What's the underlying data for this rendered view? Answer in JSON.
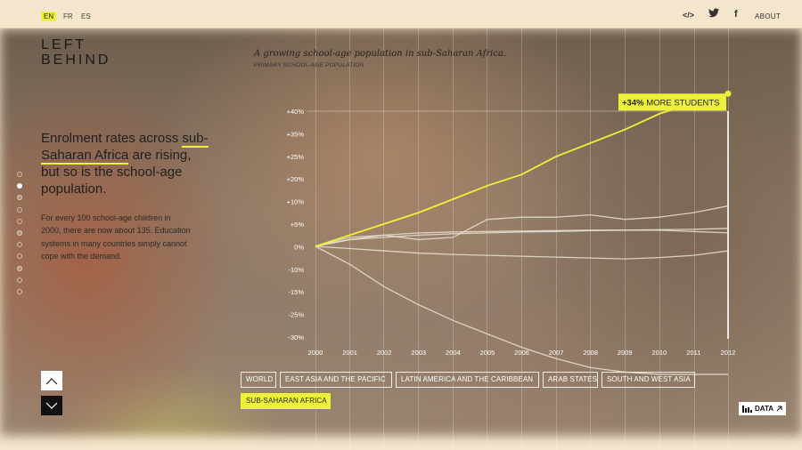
{
  "languages": [
    {
      "code": "EN",
      "active": true
    },
    {
      "code": "FR",
      "active": false
    },
    {
      "code": "ES",
      "active": false
    }
  ],
  "topnav": {
    "embed_icon": "</>",
    "twitter_icon": "twitter-bird",
    "facebook_icon": "f",
    "about": "ABOUT"
  },
  "logo": {
    "line1": "LEFT",
    "line2": "BEHIND"
  },
  "story": {
    "headline_pre": "Enrolment rates across ",
    "headline_highlight": "sub-Saharan Africa",
    "headline_post": " are rising, but so is the school-age population.",
    "body": "For every 100 school-age children in 2000, there are now about 135. Education systems in many countries simply cannot cope with the demand."
  },
  "progress_dots": 11,
  "active_dot": 1,
  "chart_data": {
    "type": "line",
    "title": "A growing school-age population in sub-Saharan Africa.",
    "subtitle": "PRIMARY SCHOOL-AGE POPULATION",
    "x": [
      2000,
      2001,
      2002,
      2003,
      2004,
      2005,
      2006,
      2007,
      2008,
      2009,
      2010,
      2011,
      2012
    ],
    "ylim": [
      -30,
      40
    ],
    "yticks": [
      "+40%",
      "+35%",
      "+25%",
      "+20%",
      "+10%",
      "+5%",
      "0%",
      "-10%",
      "-15%",
      "-25%",
      "-30%"
    ],
    "annotation": {
      "value": "+34%",
      "label": "MORE STUDENTS",
      "x": 2012,
      "y": 34
    },
    "series": [
      {
        "name": "SUB-SAHARAN AFRICA",
        "highlight": true,
        "values": [
          0,
          2.5,
          5,
          7.5,
          10.5,
          13.5,
          16,
          20,
          23,
          26,
          29.5,
          32,
          34
        ]
      },
      {
        "name": "ARAB STATES",
        "highlight": false,
        "values": [
          0,
          1.5,
          2.5,
          1.5,
          2,
          6,
          6.5,
          6.5,
          7,
          6,
          6.5,
          7.5,
          9
        ]
      },
      {
        "name": "WORLD",
        "highlight": false,
        "values": [
          0,
          1.5,
          2,
          2.5,
          2.8,
          3,
          3.2,
          3.3,
          3.5,
          3.6,
          3.7,
          3.8,
          4
        ]
      },
      {
        "name": "SOUTH AND WEST ASIA",
        "highlight": false,
        "values": [
          0,
          2,
          2.5,
          3,
          3.2,
          3.3,
          3.4,
          3.5,
          3.6,
          3.6,
          3.6,
          3.3,
          3
        ]
      },
      {
        "name": "LATIN AMERICA AND THE CARIBBEAN",
        "highlight": false,
        "values": [
          0,
          -0.5,
          -1,
          -1.5,
          -1.8,
          -2,
          -2.2,
          -2.4,
          -2.6,
          -2.8,
          -2.5,
          -2,
          -1
        ]
      },
      {
        "name": "EAST ASIA AND THE PACIFIC",
        "highlight": false,
        "values": [
          0,
          -4,
          -9,
          -13,
          -16.5,
          -19.5,
          -22.5,
          -25,
          -27,
          -28,
          -28.5,
          -28.5,
          -28.5
        ]
      }
    ]
  },
  "filters": [
    {
      "label": "WORLD",
      "active": false
    },
    {
      "label": "EAST ASIA AND THE PACIFIC",
      "active": false
    },
    {
      "label": "LATIN AMERICA AND THE CARIBBEAN",
      "active": false
    },
    {
      "label": "ARAB STATES",
      "active": false
    },
    {
      "label": "SOUTH AND WEST ASIA",
      "active": false
    },
    {
      "label": "SUB-SAHARAN AFRICA",
      "active": true
    }
  ],
  "data_button": {
    "label": "DATA"
  },
  "colors": {
    "highlight": "#eef236",
    "series": "#e8e2d4",
    "accent_bg": "#f3e6cc"
  }
}
